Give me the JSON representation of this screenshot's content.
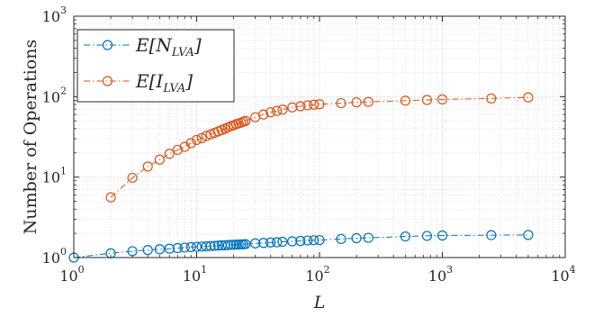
{
  "chart_data": {
    "type": "line",
    "xlabel": "L",
    "ylabel": "Number of Operations",
    "xscale": "log",
    "yscale": "log",
    "xlim": [
      1,
      10000
    ],
    "ylim": [
      1,
      1000
    ],
    "grid": true,
    "minor_grid": true,
    "legend_position": "top-left",
    "x_ticks": [
      {
        "base": "10",
        "exp": "0",
        "value": 1
      },
      {
        "base": "10",
        "exp": "1",
        "value": 10
      },
      {
        "base": "10",
        "exp": "2",
        "value": 100
      },
      {
        "base": "10",
        "exp": "3",
        "value": 1000
      },
      {
        "base": "10",
        "exp": "4",
        "value": 10000
      }
    ],
    "y_ticks": [
      {
        "base": "10",
        "exp": "0",
        "value": 1
      },
      {
        "base": "10",
        "exp": "1",
        "value": 10
      },
      {
        "base": "10",
        "exp": "2",
        "value": 100
      },
      {
        "base": "10",
        "exp": "3",
        "value": 1000
      }
    ],
    "series": [
      {
        "name": "E[N_LVA]",
        "legend_main": "E[N",
        "legend_sub": "LVA",
        "legend_close": "]",
        "color": "#0072BD",
        "line_style": "dash-dot",
        "marker": "circle",
        "x": [
          1,
          2,
          3,
          4,
          5,
          6,
          7,
          8,
          9,
          10,
          11,
          12,
          13,
          14,
          15,
          16,
          17,
          18,
          19,
          20,
          21,
          22,
          23,
          24,
          25,
          30,
          35,
          40,
          45,
          50,
          60,
          70,
          80,
          90,
          100,
          150,
          200,
          250,
          500,
          750,
          1000,
          2500,
          5000
        ],
        "y": [
          1.0,
          1.13,
          1.2,
          1.24,
          1.27,
          1.29,
          1.31,
          1.33,
          1.35,
          1.36,
          1.37,
          1.38,
          1.39,
          1.4,
          1.41,
          1.42,
          1.42,
          1.43,
          1.44,
          1.44,
          1.45,
          1.45,
          1.46,
          1.46,
          1.47,
          1.5,
          1.52,
          1.54,
          1.55,
          1.57,
          1.59,
          1.61,
          1.63,
          1.64,
          1.65,
          1.7,
          1.74,
          1.76,
          1.83,
          1.86,
          1.88,
          1.9,
          1.91
        ]
      },
      {
        "name": "E[I_LVA]",
        "legend_main": "E[I",
        "legend_sub": "LVA",
        "legend_close": "]",
        "color": "#D95319",
        "line_style": "dash-dot",
        "marker": "circle",
        "x": [
          2,
          3,
          4,
          5,
          6,
          7,
          8,
          9,
          10,
          11,
          12,
          13,
          14,
          15,
          16,
          17,
          18,
          19,
          20,
          21,
          22,
          23,
          24,
          25,
          30,
          35,
          40,
          45,
          50,
          60,
          70,
          80,
          90,
          100,
          150,
          200,
          250,
          500,
          750,
          1000,
          2500,
          5000
        ],
        "y": [
          5.6,
          9.8,
          13.5,
          16.5,
          19.5,
          21.8,
          23.8,
          26.5,
          29.0,
          30.5,
          32.5,
          34.0,
          35.5,
          37.0,
          38.5,
          40.0,
          41.5,
          43.0,
          44.0,
          45.5,
          46.5,
          47.5,
          48.8,
          50.0,
          55.5,
          60.0,
          64.0,
          66.5,
          69.0,
          73.5,
          76.0,
          78.0,
          79.5,
          80.5,
          83.0,
          85.0,
          86.0,
          89.0,
          91.0,
          92.5,
          95.0,
          98.0
        ]
      }
    ]
  }
}
